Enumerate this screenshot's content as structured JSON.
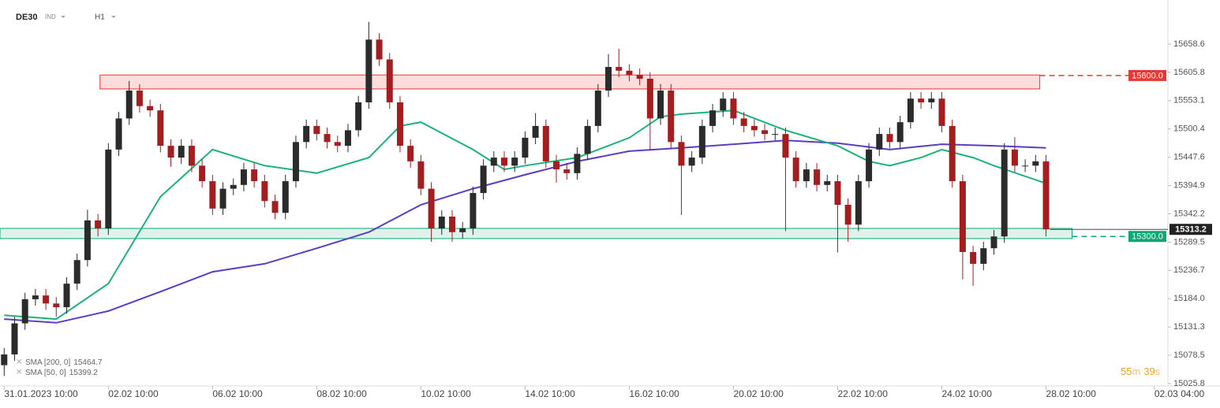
{
  "chart_data": {
    "type": "candlestick",
    "symbol": "DE30",
    "market": "IND",
    "interval": "H1",
    "timer": [
      "55",
      "m",
      "39",
      "s"
    ],
    "xlim": [
      -0.4,
      111.7
    ],
    "ylim": [
      15021.3,
      15740.8
    ],
    "xticks": [
      {
        "value": 0,
        "label": "31.01.2023 10:00"
      },
      {
        "value": 10,
        "label": "02.02 10:00"
      },
      {
        "value": 20,
        "label": "06.02 10:00"
      },
      {
        "value": 30,
        "label": "08.02 10:00"
      },
      {
        "value": 40,
        "label": "10.02 10:00"
      },
      {
        "value": 50,
        "label": "14.02 10:00"
      },
      {
        "value": 60,
        "label": "16.02 10:00"
      },
      {
        "value": 70,
        "label": "20.02 10:00"
      },
      {
        "value": 80,
        "label": "22.02 10:00"
      },
      {
        "value": 90,
        "label": "24.02 10:00"
      },
      {
        "value": 100,
        "label": "28.02 10:00"
      },
      {
        "value": 110.4,
        "label": "02.03 04:00"
      }
    ],
    "yticks": [
      15658.6,
      15605.8,
      15553.1,
      15500.4,
      15447.6,
      15394.9,
      15342.2,
      15289.5,
      15236.7,
      {
        "value": 15184,
        "label": "15184.0"
      },
      15131.3,
      15078.5,
      15025.8
    ],
    "up_color": "#2b2b2b",
    "down_color": "#a31f1f",
    "open": [
      15060,
      15080,
      15138,
      15183,
      15190,
      15175,
      15168,
      15212,
      15256,
      15330,
      15315,
      15462,
      15520,
      15572,
      15543,
      15535,
      15469,
      15447,
      15469,
      15432,
      15403,
      15352,
      15389,
      15396,
      15425,
      15403,
      15366,
      15344,
      15403,
      15476,
      15506,
      15491,
      15476,
      15469,
      15498,
      15550,
      15667,
      15630,
      15550,
      15469,
      15440,
      15389,
      15315,
      15337,
      15308,
      15315,
      15381,
      15432,
      15447,
      15432,
      15447,
      15484,
      15506,
      15440,
      15425,
      15418,
      15454,
      15506,
      15572,
      15616,
      15609,
      15601,
      15594,
      15520,
      15572,
      15476,
      15432,
      15447,
      15506,
      15535,
      15557,
      15520,
      15506,
      15498,
      15491,
      15491,
      15447,
      15403,
      15425,
      15396,
      15403,
      15359,
      15322,
      15403,
      15462,
      15491,
      15476,
      15513,
      15557,
      15550,
      15557,
      15506,
      15403,
      15271,
      15249,
      15278,
      15300,
      15462,
      15432,
      15432,
      15440
    ],
    "high": [
      15092,
      15150,
      15195,
      15202,
      15202,
      15187,
      15224,
      15268,
      15350,
      15342,
      15474,
      15532,
      15590,
      15584,
      15555,
      15547,
      15481,
      15481,
      15481,
      15444,
      15415,
      15401,
      15408,
      15437,
      15437,
      15415,
      15378,
      15415,
      15488,
      15518,
      15518,
      15503,
      15488,
      15510,
      15562,
      15700,
      15679,
      15642,
      15562,
      15481,
      15452,
      15401,
      15349,
      15349,
      15327,
      15393,
      15444,
      15459,
      15459,
      15459,
      15496,
      15530,
      15518,
      15452,
      15437,
      15466,
      15518,
      15584,
      15640,
      15650,
      15621,
      15613,
      15606,
      15584,
      15584,
      15488,
      15459,
      15518,
      15547,
      15569,
      15569,
      15532,
      15518,
      15510,
      15503,
      15503,
      15459,
      15437,
      15437,
      15415,
      15415,
      15371,
      15415,
      15474,
      15503,
      15503,
      15525,
      15569,
      15569,
      15569,
      15569,
      15518,
      15415,
      15283,
      15290,
      15312,
      15474,
      15485,
      15444,
      15452,
      15452
    ],
    "low": [
      15040,
      15068,
      15126,
      15171,
      15163,
      15150,
      15156,
      15200,
      15244,
      15300,
      15303,
      15450,
      15508,
      15531,
      15523,
      15457,
      15430,
      15435,
      15420,
      15391,
      15340,
      15340,
      15377,
      15384,
      15391,
      15354,
      15332,
      15332,
      15391,
      15464,
      15479,
      15464,
      15457,
      15457,
      15486,
      15538,
      15618,
      15538,
      15457,
      15428,
      15377,
      15290,
      15303,
      15290,
      15296,
      15303,
      15369,
      15420,
      15420,
      15420,
      15435,
      15472,
      15428,
      15400,
      15406,
      15406,
      15442,
      15494,
      15560,
      15597,
      15589,
      15582,
      15460,
      15508,
      15464,
      15340,
      15420,
      15435,
      15494,
      15523,
      15508,
      15494,
      15486,
      15479,
      15479,
      15310,
      15391,
      15391,
      15384,
      15384,
      15270,
      15290,
      15310,
      15391,
      15450,
      15464,
      15464,
      15501,
      15538,
      15538,
      15494,
      15391,
      15220,
      15208,
      15237,
      15266,
      15288,
      15420,
      15420,
      15420,
      15300
    ],
    "close": [
      15080,
      15138,
      15183,
      15190,
      15175,
      15168,
      15212,
      15256,
      15330,
      15315,
      15462,
      15520,
      15572,
      15543,
      15535,
      15469,
      15447,
      15469,
      15432,
      15403,
      15352,
      15389,
      15396,
      15425,
      15403,
      15366,
      15344,
      15403,
      15476,
      15506,
      15491,
      15476,
      15469,
      15498,
      15550,
      15667,
      15630,
      15550,
      15469,
      15440,
      15389,
      15315,
      15337,
      15308,
      15315,
      15381,
      15432,
      15447,
      15432,
      15447,
      15484,
      15506,
      15440,
      15425,
      15418,
      15454,
      15506,
      15572,
      15616,
      15609,
      15601,
      15594,
      15520,
      15572,
      15476,
      15432,
      15447,
      15506,
      15535,
      15557,
      15520,
      15506,
      15498,
      15491,
      15491,
      15447,
      15403,
      15425,
      15396,
      15403,
      15359,
      15322,
      15403,
      15462,
      15491,
      15476,
      15513,
      15557,
      15550,
      15557,
      15506,
      15403,
      15271,
      15249,
      15278,
      15300,
      15462,
      15432,
      15432,
      15440,
      15313.2
    ],
    "series": [
      {
        "name": "SMA [200, 0]",
        "last": 15464.7,
        "color": "#5b3cc4",
        "x": [
          0,
          5,
          10,
          15,
          20,
          25,
          30,
          35,
          40,
          45,
          50,
          55,
          60,
          65,
          70,
          75,
          80,
          85,
          90,
          95,
          100
        ],
        "values": [
          15146,
          15139,
          15161,
          15197,
          15234,
          15249,
          15278,
          15308,
          15359,
          15389,
          15415,
          15440,
          15459,
          15465,
          15472,
          15479,
          15474,
          15462,
          15472,
          15469,
          15465
        ]
      },
      {
        "name": "SMA [50, 0]",
        "last": 15399.2,
        "color": "#1bb37a",
        "x": [
          0,
          5,
          10,
          15,
          20,
          25,
          30,
          35,
          38,
          40,
          45,
          48,
          50,
          55,
          60,
          63,
          65,
          70,
          75,
          80,
          83,
          85,
          88,
          90,
          93,
          95,
          100
        ],
        "values": [
          15153,
          15146,
          15212,
          15374,
          15462,
          15432,
          15418,
          15447,
          15506,
          15513,
          15462,
          15425,
          15432,
          15447,
          15484,
          15523,
          15528,
          15535,
          15498,
          15469,
          15440,
          15432,
          15447,
          15462,
          15447,
          15432,
          15399
        ]
      }
    ],
    "zones": [
      {
        "from": 15575,
        "to": 15601,
        "x": [
          9.2,
          99.4
        ],
        "color": "#e53935",
        "fill": "rgba(244,67,54,0.18)"
      },
      {
        "from": 15296,
        "to": 15315,
        "x": [
          -0.4,
          102.5
        ],
        "color": "#12a672",
        "fill": "rgba(18,166,114,0.15)"
      }
    ],
    "levels": [
      {
        "value": 15600,
        "label": "15600.0",
        "color": "#e53935",
        "x": 99.4
      },
      {
        "value": 15300,
        "label": "15300.0",
        "color": "#12a672",
        "x": 102.5
      }
    ]
  }
}
